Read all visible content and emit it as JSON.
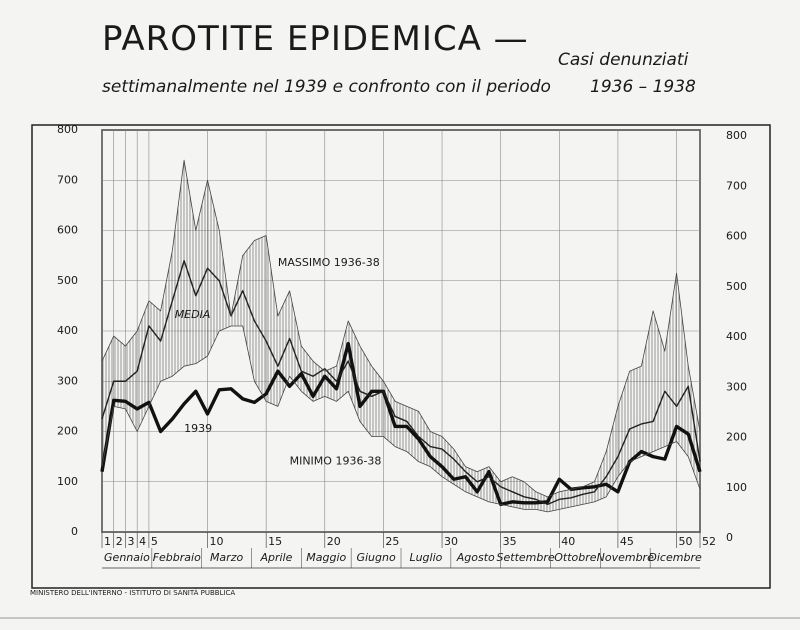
{
  "chart_data": {
    "type": "line",
    "title": "PAROTITE EPIDEMICA —",
    "subtitle": [
      "Casi denunziati",
      "settimanalmente nel 1939 e confronto con il periodo",
      "1936 – 1938"
    ],
    "source": "MINISTERO DELL'INTERNO - ISTITUTO DI SANITÀ PUBBLICA",
    "x": [
      1,
      2,
      3,
      4,
      5,
      6,
      7,
      8,
      9,
      10,
      11,
      12,
      13,
      14,
      15,
      16,
      17,
      18,
      19,
      20,
      21,
      22,
      23,
      24,
      25,
      26,
      27,
      28,
      29,
      30,
      31,
      32,
      33,
      34,
      35,
      36,
      37,
      38,
      39,
      40,
      41,
      42,
      43,
      44,
      45,
      46,
      47,
      48,
      49,
      50,
      51,
      52
    ],
    "xlim": [
      1,
      52
    ],
    "xticks": [
      1,
      2,
      3,
      4,
      5,
      10,
      15,
      20,
      25,
      30,
      35,
      40,
      45,
      50,
      52
    ],
    "months": [
      "Gennaio",
      "Febbraio",
      "Marzo",
      "Aprile",
      "Maggio",
      "Giugno",
      "Luglio",
      "Agosto",
      "Settembre",
      "Ottobre",
      "Novembre",
      "Dicembre"
    ],
    "ylim": [
      0,
      800
    ],
    "yticks": [
      0,
      100,
      200,
      300,
      400,
      500,
      600,
      700,
      800
    ],
    "grid": true,
    "series": [
      {
        "name": "1939",
        "color": "#111111",
        "values": [
          120,
          262,
          260,
          245,
          258,
          200,
          225,
          255,
          280,
          235,
          283,
          285,
          265,
          258,
          275,
          320,
          290,
          315,
          270,
          310,
          285,
          375,
          250,
          280,
          280,
          210,
          210,
          185,
          150,
          130,
          105,
          110,
          80,
          120,
          55,
          60,
          58,
          58,
          60,
          105,
          85,
          88,
          90,
          95,
          80,
          140,
          160,
          150,
          145,
          210,
          195,
          120
        ]
      },
      {
        "name": "MEDIA",
        "color": "#222222",
        "values": [
          225,
          300,
          300,
          320,
          410,
          380,
          460,
          540,
          470,
          525,
          500,
          430,
          480,
          420,
          380,
          330,
          385,
          320,
          310,
          325,
          300,
          340,
          280,
          270,
          280,
          230,
          220,
          190,
          170,
          165,
          145,
          120,
          100,
          110,
          90,
          80,
          70,
          65,
          55,
          65,
          68,
          75,
          80,
          110,
          150,
          205,
          215,
          220,
          280,
          250,
          290,
          140
        ]
      },
      {
        "name": "MASSIMO 1936-38",
        "color": "#444444",
        "values": [
          340,
          390,
          370,
          400,
          460,
          440,
          560,
          740,
          600,
          700,
          600,
          430,
          550,
          580,
          590,
          430,
          480,
          370,
          340,
          320,
          330,
          420,
          370,
          330,
          300,
          260,
          250,
          240,
          200,
          190,
          165,
          130,
          120,
          130,
          100,
          110,
          100,
          80,
          70,
          80,
          85,
          90,
          100,
          160,
          250,
          320,
          330,
          440,
          360,
          515,
          330,
          200
        ]
      },
      {
        "name": "MINIMO 1936-38",
        "color": "#444444",
        "values": [
          130,
          250,
          245,
          200,
          250,
          300,
          310,
          330,
          335,
          350,
          400,
          410,
          410,
          300,
          260,
          250,
          310,
          280,
          260,
          270,
          260,
          280,
          220,
          190,
          190,
          170,
          160,
          140,
          130,
          110,
          95,
          80,
          70,
          60,
          55,
          50,
          45,
          45,
          40,
          45,
          50,
          55,
          60,
          70,
          110,
          140,
          150,
          160,
          170,
          180,
          150,
          85
        ]
      }
    ]
  }
}
